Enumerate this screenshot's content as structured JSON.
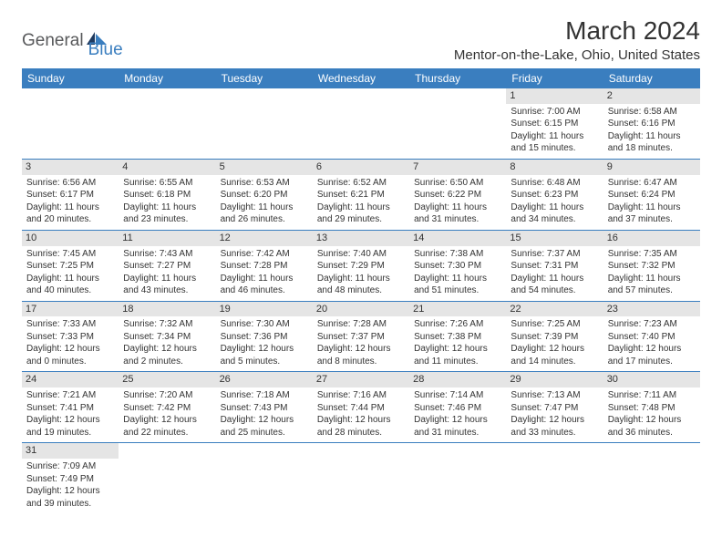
{
  "brand": {
    "part1": "General",
    "part2": "Blue"
  },
  "title": "March 2024",
  "location": "Mentor-on-the-Lake, Ohio, United States",
  "headers": [
    "Sunday",
    "Monday",
    "Tuesday",
    "Wednesday",
    "Thursday",
    "Friday",
    "Saturday"
  ],
  "colors": {
    "header_bg": "#3a7ebf",
    "header_fg": "#ffffff",
    "daynum_bg": "#e5e5e5",
    "text": "#333333",
    "logo_gray": "#58595b",
    "logo_blue": "#3a7ebf",
    "row_border": "#3a7ebf"
  },
  "cells": [
    [
      null,
      null,
      null,
      null,
      null,
      {
        "d": "1",
        "sr": "7:00 AM",
        "ss": "6:15 PM",
        "dl": "11 hours and 15 minutes."
      },
      {
        "d": "2",
        "sr": "6:58 AM",
        "ss": "6:16 PM",
        "dl": "11 hours and 18 minutes."
      }
    ],
    [
      {
        "d": "3",
        "sr": "6:56 AM",
        "ss": "6:17 PM",
        "dl": "11 hours and 20 minutes."
      },
      {
        "d": "4",
        "sr": "6:55 AM",
        "ss": "6:18 PM",
        "dl": "11 hours and 23 minutes."
      },
      {
        "d": "5",
        "sr": "6:53 AM",
        "ss": "6:20 PM",
        "dl": "11 hours and 26 minutes."
      },
      {
        "d": "6",
        "sr": "6:52 AM",
        "ss": "6:21 PM",
        "dl": "11 hours and 29 minutes."
      },
      {
        "d": "7",
        "sr": "6:50 AM",
        "ss": "6:22 PM",
        "dl": "11 hours and 31 minutes."
      },
      {
        "d": "8",
        "sr": "6:48 AM",
        "ss": "6:23 PM",
        "dl": "11 hours and 34 minutes."
      },
      {
        "d": "9",
        "sr": "6:47 AM",
        "ss": "6:24 PM",
        "dl": "11 hours and 37 minutes."
      }
    ],
    [
      {
        "d": "10",
        "sr": "7:45 AM",
        "ss": "7:25 PM",
        "dl": "11 hours and 40 minutes."
      },
      {
        "d": "11",
        "sr": "7:43 AM",
        "ss": "7:27 PM",
        "dl": "11 hours and 43 minutes."
      },
      {
        "d": "12",
        "sr": "7:42 AM",
        "ss": "7:28 PM",
        "dl": "11 hours and 46 minutes."
      },
      {
        "d": "13",
        "sr": "7:40 AM",
        "ss": "7:29 PM",
        "dl": "11 hours and 48 minutes."
      },
      {
        "d": "14",
        "sr": "7:38 AM",
        "ss": "7:30 PM",
        "dl": "11 hours and 51 minutes."
      },
      {
        "d": "15",
        "sr": "7:37 AM",
        "ss": "7:31 PM",
        "dl": "11 hours and 54 minutes."
      },
      {
        "d": "16",
        "sr": "7:35 AM",
        "ss": "7:32 PM",
        "dl": "11 hours and 57 minutes."
      }
    ],
    [
      {
        "d": "17",
        "sr": "7:33 AM",
        "ss": "7:33 PM",
        "dl": "12 hours and 0 minutes."
      },
      {
        "d": "18",
        "sr": "7:32 AM",
        "ss": "7:34 PM",
        "dl": "12 hours and 2 minutes."
      },
      {
        "d": "19",
        "sr": "7:30 AM",
        "ss": "7:36 PM",
        "dl": "12 hours and 5 minutes."
      },
      {
        "d": "20",
        "sr": "7:28 AM",
        "ss": "7:37 PM",
        "dl": "12 hours and 8 minutes."
      },
      {
        "d": "21",
        "sr": "7:26 AM",
        "ss": "7:38 PM",
        "dl": "12 hours and 11 minutes."
      },
      {
        "d": "22",
        "sr": "7:25 AM",
        "ss": "7:39 PM",
        "dl": "12 hours and 14 minutes."
      },
      {
        "d": "23",
        "sr": "7:23 AM",
        "ss": "7:40 PM",
        "dl": "12 hours and 17 minutes."
      }
    ],
    [
      {
        "d": "24",
        "sr": "7:21 AM",
        "ss": "7:41 PM",
        "dl": "12 hours and 19 minutes."
      },
      {
        "d": "25",
        "sr": "7:20 AM",
        "ss": "7:42 PM",
        "dl": "12 hours and 22 minutes."
      },
      {
        "d": "26",
        "sr": "7:18 AM",
        "ss": "7:43 PM",
        "dl": "12 hours and 25 minutes."
      },
      {
        "d": "27",
        "sr": "7:16 AM",
        "ss": "7:44 PM",
        "dl": "12 hours and 28 minutes."
      },
      {
        "d": "28",
        "sr": "7:14 AM",
        "ss": "7:46 PM",
        "dl": "12 hours and 31 minutes."
      },
      {
        "d": "29",
        "sr": "7:13 AM",
        "ss": "7:47 PM",
        "dl": "12 hours and 33 minutes."
      },
      {
        "d": "30",
        "sr": "7:11 AM",
        "ss": "7:48 PM",
        "dl": "12 hours and 36 minutes."
      }
    ],
    [
      {
        "d": "31",
        "sr": "7:09 AM",
        "ss": "7:49 PM",
        "dl": "12 hours and 39 minutes."
      },
      null,
      null,
      null,
      null,
      null,
      null
    ]
  ]
}
